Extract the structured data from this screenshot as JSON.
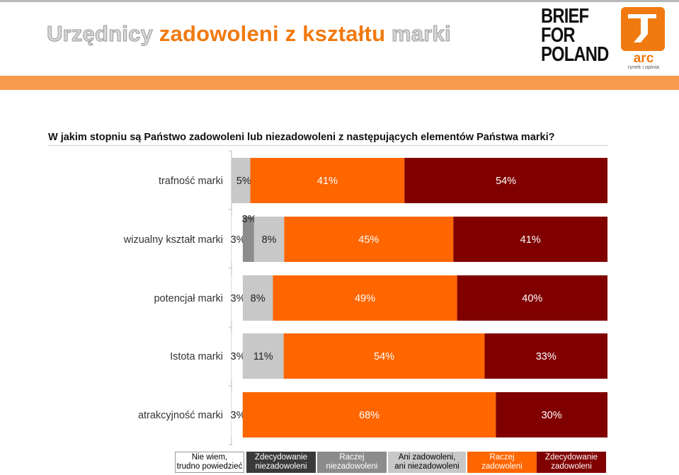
{
  "header": {
    "title_part1": "Urzędnicy",
    "title_part2": "zadowoleni z kształtu",
    "title_part3": "marki",
    "logo_brief": [
      "BRIEF",
      "FOR",
      "POLAND"
    ],
    "logo_arc": "arc",
    "logo_arc_tagline": "rynek i opinia"
  },
  "question": "W jakim stopniu są Państwo zadowoleni lub niezadowoleni z następujących elementów Państwa marki?",
  "colors": {
    "accent_orange": "#f07a10",
    "band": "#f79a4e"
  },
  "chart_data": {
    "type": "bar",
    "orientation": "horizontal",
    "stacked": true,
    "normalized": true,
    "categories": [
      "trafność marki",
      "wizualny kształt marki",
      "potencjał marki",
      "Istota marki",
      "atrakcyjność marki"
    ],
    "series": [
      {
        "name": "Nie wiem, trudno powiedzieć",
        "color": "#ffffff",
        "values": [
          0,
          3,
          3,
          3,
          3
        ],
        "labels": [
          "",
          "3%",
          "3%",
          "3%",
          "3%"
        ]
      },
      {
        "name": "Zdecydowanie niezadowoleni",
        "color": "#3a3a3a",
        "values": [
          0,
          0,
          0,
          0,
          0
        ],
        "labels": [
          "",
          "",
          "",
          "",
          ""
        ]
      },
      {
        "name": "Raczej niezadowoleni",
        "color": "#8c8c8c",
        "values": [
          0,
          3,
          0,
          0,
          0
        ],
        "labels": [
          "",
          "3%",
          "",
          "",
          ""
        ]
      },
      {
        "name": "Ani zadowoleni, ani niezadowoleni",
        "color": "#c8c8c8",
        "values": [
          5,
          8,
          8,
          11,
          0
        ],
        "labels": [
          "5%",
          "8%",
          "8%",
          "11%",
          ""
        ]
      },
      {
        "name": "Raczej zadowoleni",
        "color": "#ff6600",
        "values": [
          41,
          45,
          49,
          54,
          68
        ],
        "labels": [
          "41%",
          "45%",
          "49%",
          "54%",
          "68%"
        ]
      },
      {
        "name": "Zdecydowanie zadowoleni",
        "color": "#800000",
        "values": [
          54,
          41,
          40,
          33,
          30
        ],
        "labels": [
          "54%",
          "41%",
          "40%",
          "33%",
          "30%"
        ]
      }
    ],
    "legend": [
      {
        "label": "Nie wiem,\ntrudno powiedzieć",
        "bg": "#ffffff",
        "fg": "#000000"
      },
      {
        "label": "Zdecydowanie\nniezadowoleni",
        "bg": "#3a3a3a",
        "fg": "#ffffff"
      },
      {
        "label": "Raczej\nniezadowoleni",
        "bg": "#8c8c8c",
        "fg": "#ffffff"
      },
      {
        "label": "Ani zadowoleni,\nani niezadowoleni",
        "bg": "#c8c8c8",
        "fg": "#000000"
      },
      {
        "label": "Raczej\nzadowoleni",
        "bg": "#ff6600",
        "fg": "#ffffff"
      },
      {
        "label": "Zdecydowanie\nzadowoleni",
        "bg": "#800000",
        "fg": "#ffffff"
      }
    ],
    "legend_position": "bottom"
  }
}
